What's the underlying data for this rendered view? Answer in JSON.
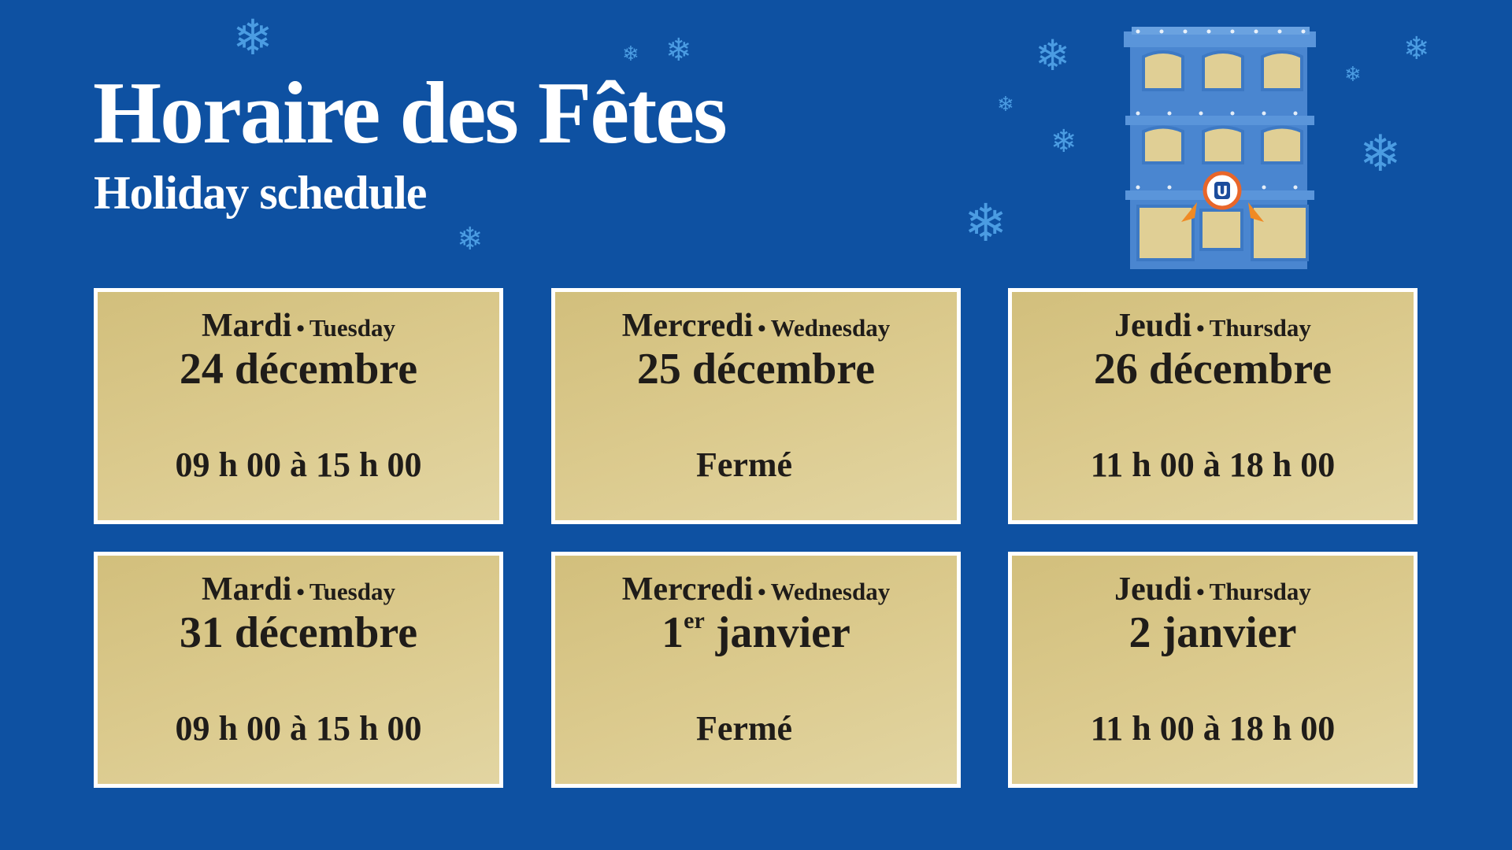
{
  "header": {
    "title": "Horaire des Fêtes",
    "subtitle": "Holiday schedule"
  },
  "colors": {
    "background": "#0e51a2",
    "card": "#d8c788",
    "snowflake": "#4b9ce2",
    "text": "#1f1c19"
  },
  "illustration": {
    "logo_letter": "U"
  },
  "cards": [
    {
      "day_fr": "Mardi",
      "separator": "•",
      "day_en": "Tuesday",
      "date": "24 décembre",
      "date_sup": "",
      "hours": "09 h 00 à 15 h 00"
    },
    {
      "day_fr": "Mercredi",
      "separator": "•",
      "day_en": "Wednesday",
      "date": "25 décembre",
      "date_sup": "",
      "hours": "Fermé"
    },
    {
      "day_fr": "Jeudi",
      "separator": "•",
      "day_en": "Thursday",
      "date": "26 décembre",
      "date_sup": "",
      "hours": "11 h 00 à 18 h 00"
    },
    {
      "day_fr": "Mardi",
      "separator": "•",
      "day_en": "Tuesday",
      "date": "31 décembre",
      "date_sup": "",
      "hours": "09 h 00 à 15 h 00"
    },
    {
      "day_fr": "Mercredi",
      "separator": "•",
      "day_en": "Wednesday",
      "date": "1",
      "date_sup": "er",
      "date_rest": " janvier",
      "hours": "Fermé"
    },
    {
      "day_fr": "Jeudi",
      "separator": "•",
      "day_en": "Thursday",
      "date": "2 janvier",
      "date_sup": "",
      "hours": "11 h 00 à 18 h 00"
    }
  ]
}
